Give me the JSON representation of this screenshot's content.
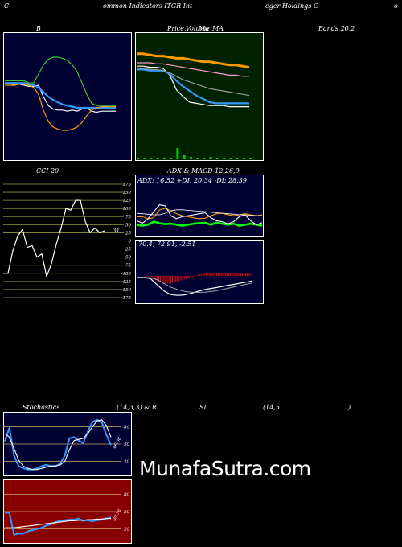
{
  "header": {
    "left_char": "C",
    "center_left": "ommon  Indicators ITGR Int",
    "center_right": "eger Holdings C",
    "right_char": "o"
  },
  "labels": {
    "bb": "B",
    "price": "Price,",
    "volume": "Volume",
    "ma_word": "Ma",
    "ma": "MA",
    "bands": "Bands 20,2",
    "cci": "CCI 20",
    "adx": "ADX  & MACD 12,26,9",
    "stoch": "Stochastics",
    "stoch_params": "(14,3,3) & R",
    "rsi": "SI",
    "rsi_params": "(14,5",
    "rsi_close": ")"
  },
  "watermark": "MunafaSutra.com",
  "colors": {
    "navy": "#000033",
    "green_bg": "#002200",
    "red_bg": "#880000",
    "orange": "#ff9900",
    "blue": "#3399ff",
    "lime": "#00ff00",
    "grid_olive": "#999933"
  },
  "chart_data": [
    {
      "id": "bollinger",
      "type": "line",
      "ylim": [
        0,
        100
      ],
      "series": [
        {
          "color": "#ffffff",
          "values": [
            62,
            62,
            60,
            61,
            60,
            59,
            59,
            60,
            50,
            42,
            39,
            38,
            38,
            37,
            38,
            37,
            39,
            40,
            37,
            36,
            37,
            37,
            37,
            37
          ]
        },
        {
          "color": "#3399ff",
          "values": [
            62,
            62,
            62,
            62,
            62,
            61,
            60,
            58,
            54,
            50,
            47,
            45,
            43,
            42,
            41,
            40,
            40,
            40,
            40,
            40,
            40,
            40,
            40,
            40
          ]
        },
        {
          "color": "#ff9900",
          "values": [
            60,
            60,
            60,
            61,
            61,
            60,
            58,
            52,
            38,
            28,
            23,
            21,
            20,
            20,
            21,
            23,
            27,
            33,
            38,
            40,
            41,
            41,
            41,
            41
          ]
        },
        {
          "color": "#33cc33",
          "values": [
            64,
            64,
            64,
            64,
            64,
            62,
            62,
            70,
            78,
            83,
            85,
            85,
            84,
            82,
            78,
            72,
            62,
            52,
            44,
            42,
            42,
            42,
            42,
            42
          ]
        }
      ]
    },
    {
      "id": "price_ma",
      "type": "line",
      "ylim": [
        0,
        100
      ],
      "series": [
        {
          "color": "#ff9900",
          "values": [
            88,
            88,
            87,
            86,
            86,
            85,
            84,
            84,
            83,
            82,
            81,
            81,
            80,
            79,
            78,
            78,
            77,
            76
          ]
        },
        {
          "color": "#ffffff",
          "values": [
            77,
            77,
            76,
            76,
            75,
            69,
            56,
            50,
            45,
            44,
            43,
            42,
            42,
            42,
            41,
            41,
            41,
            41
          ]
        },
        {
          "color": "#3399ff",
          "values": [
            74,
            74,
            73,
            73,
            73,
            70,
            64,
            59,
            55,
            51,
            48,
            45,
            44,
            44,
            44,
            44,
            44,
            44
          ]
        },
        {
          "color": "#ff99cc",
          "values": [
            80,
            80,
            80,
            79,
            79,
            78,
            77,
            76,
            75,
            74,
            73,
            72,
            71,
            70,
            69,
            69,
            68,
            68
          ]
        },
        {
          "color": "#999999",
          "values": [
            75,
            75,
            74,
            74,
            73,
            71,
            68,
            65,
            63,
            61,
            59,
            57,
            56,
            55,
            54,
            53,
            52,
            51
          ]
        }
      ],
      "volume": [
        1,
        1,
        2,
        1,
        1,
        1,
        14,
        5,
        3,
        2,
        2,
        3,
        1,
        2,
        1,
        2,
        1,
        1
      ]
    },
    {
      "id": "cci",
      "type": "line",
      "ylim": [
        -175,
        175
      ],
      "ytick_labels": [
        "175",
        "150",
        "125",
        "100",
        "75",
        "50",
        "25",
        "0",
        "-25",
        "-50",
        "-75",
        "-100",
        "-125",
        "-150",
        "-175"
      ],
      "last_label": "31",
      "series": [
        {
          "color": "#ffffff",
          "values": [
            -100,
            -100,
            -30,
            15,
            35,
            -20,
            -15,
            -50,
            -40,
            -110,
            -70,
            -10,
            40,
            100,
            95,
            125,
            125,
            60,
            25,
            40,
            25,
            31
          ]
        }
      ]
    },
    {
      "id": "adx",
      "type": "line",
      "adx_text": "ADX: 16.52  +DI: 20.34  -DI: 28.39",
      "ylim": [
        0,
        100
      ],
      "series": [
        {
          "color": "#00ff00",
          "values": [
            22,
            20,
            22,
            28,
            25,
            23,
            24,
            22,
            20,
            22,
            24,
            25,
            26,
            22,
            26,
            24,
            22,
            24,
            20,
            22,
            24,
            22,
            20
          ]
        },
        {
          "color": "#ff9900",
          "values": [
            38,
            38,
            34,
            36,
            52,
            55,
            50,
            44,
            40,
            38,
            36,
            34,
            35,
            40,
            44,
            45,
            42,
            40,
            42,
            44,
            42,
            40,
            42
          ]
        },
        {
          "color": "#ffffff",
          "values": [
            30,
            25,
            34,
            48,
            62,
            60,
            40,
            34,
            38,
            40,
            42,
            44,
            46,
            36,
            30,
            28,
            24,
            28,
            38,
            42,
            30,
            22,
            26
          ]
        },
        {
          "color": "#ffffff",
          "values": [
            45,
            44,
            43,
            42,
            42,
            45,
            50,
            52,
            52,
            51,
            50,
            49,
            48,
            47,
            46,
            45,
            44,
            43,
            42,
            42,
            41,
            40,
            40
          ]
        }
      ]
    },
    {
      "id": "macd",
      "type": "bar",
      "text": "70.4,   72.91,   -2.51",
      "ylim": [
        -100,
        100
      ],
      "macd": [
        -5,
        -6,
        -10,
        -35,
        -60,
        -75,
        -78,
        -76,
        -70,
        -62,
        -55,
        -50,
        -45,
        -40,
        -35,
        -30,
        -25,
        -20
      ],
      "signal": [
        -5,
        -5,
        -7,
        -15,
        -30,
        -45,
        -55,
        -62,
        -65,
        -66,
        -65,
        -62,
        -58,
        -52,
        -46,
        -40,
        -34,
        -28
      ],
      "hist": [
        0,
        -1,
        -3,
        -20,
        -30,
        -30,
        -23,
        -14,
        -5,
        4,
        10,
        12,
        13,
        12,
        11,
        10,
        9,
        8
      ]
    },
    {
      "id": "stochastics",
      "type": "line",
      "ylim": [
        0,
        100
      ],
      "ytick_labels": [
        "80",
        "50",
        "20"
      ],
      "last_label": "46.06",
      "series": [
        {
          "color": "#3399ff",
          "values": [
            55,
            78,
            30,
            12,
            8,
            6,
            6,
            8,
            12,
            14,
            12,
            12,
            16,
            30,
            60,
            62,
            56,
            52,
            72,
            88,
            92,
            88,
            66,
            48
          ]
        },
        {
          "color": "#ffffff",
          "values": [
            68,
            62,
            42,
            22,
            12,
            8,
            6,
            6,
            8,
            10,
            12,
            12,
            14,
            20,
            40,
            56,
            58,
            60,
            68,
            80,
            90,
            92,
            82,
            62
          ]
        }
      ]
    },
    {
      "id": "rsi",
      "type": "line",
      "ylim": [
        0,
        100
      ],
      "ytick_labels": [
        "80",
        "50",
        "20"
      ],
      "last_label": "39.76",
      "series": [
        {
          "color": "#3399ff",
          "values": [
            48,
            48,
            10,
            12,
            12,
            16,
            18,
            20,
            22,
            26,
            28,
            32,
            34,
            35,
            36,
            36,
            38,
            34,
            35,
            33,
            35,
            36,
            38,
            40
          ]
        },
        {
          "color": "#ffffff",
          "values": [
            22,
            22,
            22,
            23,
            24,
            25,
            26,
            27,
            28,
            29,
            30,
            31,
            32,
            33,
            34,
            34,
            35,
            35,
            36,
            36,
            37,
            37,
            38,
            38
          ]
        }
      ]
    }
  ]
}
